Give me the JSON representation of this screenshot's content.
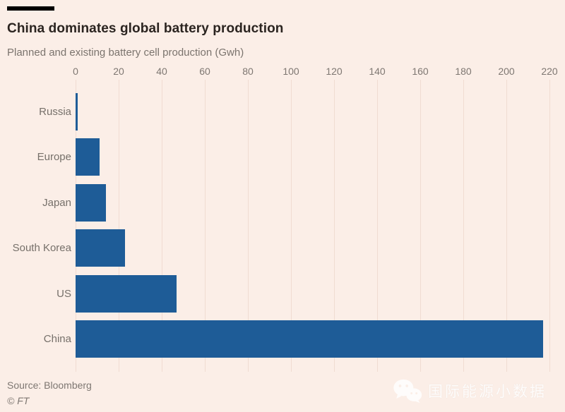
{
  "chart_data": {
    "type": "bar",
    "orientation": "horizontal",
    "title": "China dominates global battery production",
    "subtitle": "Planned and existing battery cell production (Gwh)",
    "categories": [
      "Russia",
      "Europe",
      "Japan",
      "South Korea",
      "US",
      "China"
    ],
    "values": [
      1,
      11,
      14,
      23,
      47,
      217
    ],
    "unit": "Gwh",
    "xlabel": "",
    "ylabel": "",
    "xlim": [
      0,
      220
    ],
    "xticks": [
      0,
      20,
      40,
      60,
      80,
      100,
      120,
      140,
      160,
      180,
      200,
      220
    ],
    "grid": true,
    "legend": "none",
    "bar_color": "#1E5C97",
    "background_color": "#FBEEE7",
    "gridline_color": "#F0DCD2",
    "label_color": "#76706A",
    "title_color": "#2B2420"
  },
  "footer": {
    "source": "Source: Bloomberg",
    "copyright": "© FT",
    "watermark_text": "国际能源小数据",
    "watermark_icon": "wechat-icon"
  }
}
